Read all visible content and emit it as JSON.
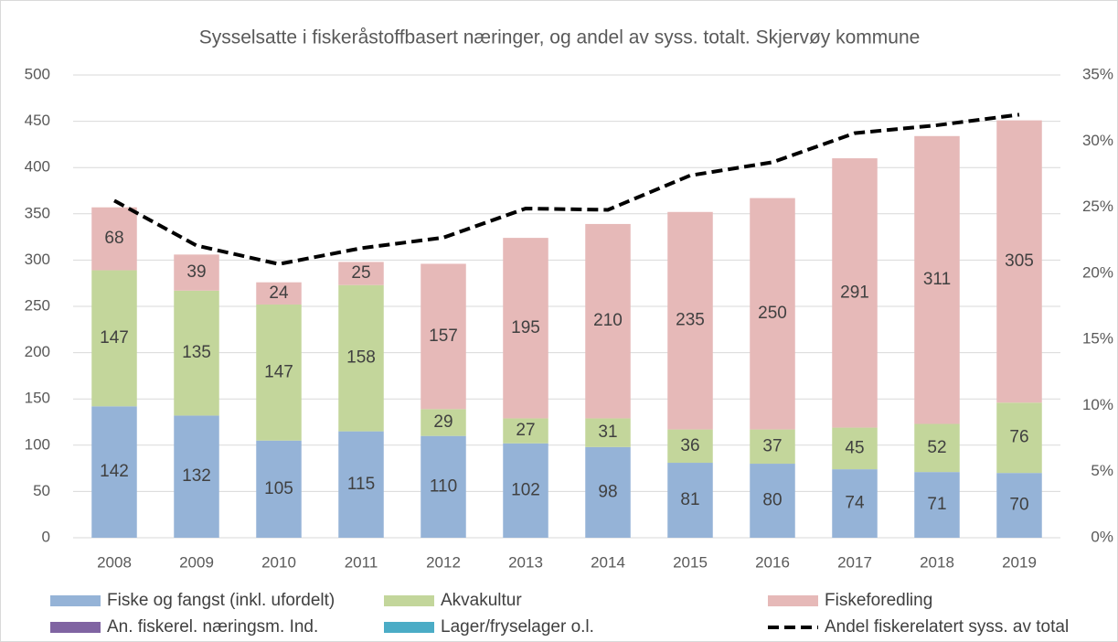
{
  "chart_data": {
    "type": "bar",
    "stacked": true,
    "title": "Sysselsatte i fiskeråstoffbasert næringer, og andel av syss. totalt. Skjervøy kommune",
    "categories": [
      "2008",
      "2009",
      "2010",
      "2011",
      "2012",
      "2013",
      "2014",
      "2015",
      "2016",
      "2017",
      "2018",
      "2019"
    ],
    "series": [
      {
        "name": "Fiske og fangst (inkl. ufordelt)",
        "color": "#95b3d7",
        "data_labels": true,
        "values": [
          142,
          132,
          105,
          115,
          110,
          102,
          98,
          81,
          80,
          74,
          71,
          70
        ]
      },
      {
        "name": "Akvakultur",
        "color": "#c3d69b",
        "data_labels": true,
        "values": [
          147,
          135,
          147,
          158,
          29,
          27,
          31,
          36,
          37,
          45,
          52,
          76
        ]
      },
      {
        "name": "Fiskeforedling",
        "color": "#e6b9b8",
        "data_labels": true,
        "values": [
          68,
          39,
          24,
          25,
          157,
          195,
          210,
          235,
          250,
          291,
          311,
          305
        ]
      },
      {
        "name": "An. fiskerel. næringsm. Ind.",
        "color": "#8064a2",
        "data_labels": false,
        "values": [
          0,
          0,
          0,
          0,
          0,
          0,
          0,
          0,
          0,
          0,
          0,
          0
        ]
      },
      {
        "name": "Lager/fryselager o.l.",
        "color": "#4bacc6",
        "data_labels": false,
        "values": [
          0,
          0,
          0,
          0,
          0,
          0,
          0,
          0,
          0,
          0,
          0,
          0
        ]
      },
      {
        "name": "Andel fiskerelatert syss. av total",
        "type": "line",
        "axis": "y2",
        "color": "#000000",
        "dashed": true,
        "values": [
          25.5,
          22.1,
          20.7,
          21.9,
          22.7,
          24.9,
          24.8,
          27.4,
          28.4,
          30.6,
          31.2,
          32.0
        ]
      }
    ],
    "ylim": [
      0,
      500
    ],
    "yticks": [
      0,
      50,
      100,
      150,
      200,
      250,
      300,
      350,
      400,
      450,
      500
    ],
    "y2lim": [
      0,
      35
    ],
    "y2ticks": [
      {
        "value": 0,
        "label": "0%"
      },
      {
        "value": 5,
        "label": "5%"
      },
      {
        "value": 10,
        "label": "10%"
      },
      {
        "value": 15,
        "label": "15%"
      },
      {
        "value": 20,
        "label": "20%"
      },
      {
        "value": 25,
        "label": "25%"
      },
      {
        "value": 30,
        "label": "30%"
      },
      {
        "value": 35,
        "label": "35%"
      }
    ],
    "grid": true,
    "legend": "bottom"
  }
}
